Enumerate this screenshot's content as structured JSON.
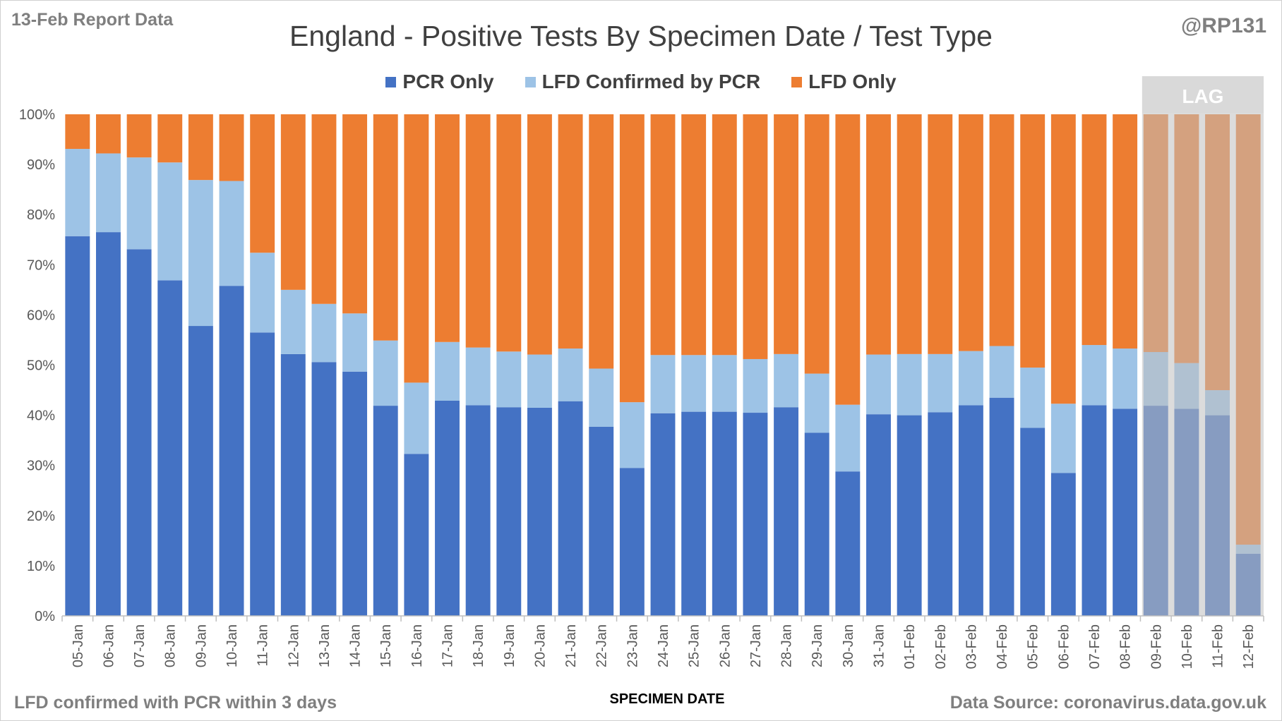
{
  "header": {
    "report_label": "13-Feb Report Data",
    "handle": "@RP131"
  },
  "footer": {
    "note": "LFD confirmed with PCR within 3 days",
    "source": "Data Source: coronavirus.data.gov.uk"
  },
  "lag_label": "LAG",
  "chart_data": {
    "type": "bar",
    "stacked": true,
    "percent_stacked": true,
    "title": "England - Positive Tests By Specimen Date / Test Type",
    "xlabel": "SPECIMEN DATE",
    "ylabel": "",
    "ylim": [
      0,
      100
    ],
    "yticks": [
      "0%",
      "10%",
      "20%",
      "30%",
      "40%",
      "50%",
      "60%",
      "70%",
      "80%",
      "90%",
      "100%"
    ],
    "legend_position": "top-center",
    "grid": false,
    "categories": [
      "05-Jan",
      "06-Jan",
      "07-Jan",
      "08-Jan",
      "09-Jan",
      "10-Jan",
      "11-Jan",
      "12-Jan",
      "13-Jan",
      "14-Jan",
      "15-Jan",
      "16-Jan",
      "17-Jan",
      "18-Jan",
      "19-Jan",
      "20-Jan",
      "21-Jan",
      "22-Jan",
      "23-Jan",
      "24-Jan",
      "25-Jan",
      "26-Jan",
      "27-Jan",
      "28-Jan",
      "29-Jan",
      "30-Jan",
      "31-Jan",
      "01-Feb",
      "02-Feb",
      "03-Feb",
      "04-Feb",
      "05-Feb",
      "06-Feb",
      "07-Feb",
      "08-Feb",
      "09-Feb",
      "10-Feb",
      "11-Feb",
      "12-Feb"
    ],
    "series": [
      {
        "name": "PCR Only",
        "color": "#4472c4",
        "values": [
          75.7,
          76.5,
          73.1,
          66.9,
          57.8,
          65.8,
          56.5,
          52.2,
          50.6,
          48.7,
          41.9,
          32.3,
          42.9,
          42.0,
          41.6,
          41.5,
          42.8,
          37.7,
          29.5,
          40.4,
          40.7,
          40.7,
          40.5,
          41.6,
          36.5,
          28.8,
          40.2,
          40.0,
          40.6,
          42.0,
          43.5,
          37.5,
          28.5,
          42.0,
          41.3,
          41.9,
          41.3,
          40.0,
          12.4
        ]
      },
      {
        "name": "LFD Confirmed by PCR",
        "color": "#9dc3e6",
        "values": [
          17.4,
          15.7,
          18.3,
          23.5,
          29.1,
          20.9,
          15.9,
          12.8,
          11.6,
          11.6,
          13.0,
          14.2,
          11.7,
          11.5,
          11.1,
          10.6,
          10.5,
          11.6,
          13.1,
          11.6,
          11.3,
          11.3,
          10.7,
          10.6,
          11.8,
          13.3,
          11.9,
          12.2,
          11.6,
          10.8,
          10.3,
          12.0,
          13.8,
          12.0,
          12.0,
          10.7,
          9.1,
          5.0,
          1.8
        ]
      },
      {
        "name": "LFD Only",
        "color": "#ed7d31",
        "values": [
          6.9,
          7.8,
          8.6,
          9.6,
          13.1,
          13.3,
          27.6,
          35.0,
          37.8,
          39.7,
          45.1,
          53.5,
          45.4,
          46.5,
          47.3,
          47.9,
          46.7,
          50.7,
          57.4,
          48.0,
          48.0,
          48.0,
          48.8,
          47.8,
          51.7,
          57.9,
          47.9,
          47.8,
          47.8,
          47.2,
          46.2,
          50.5,
          57.7,
          46.0,
          46.7,
          47.4,
          49.6,
          55.0,
          85.8
        ]
      }
    ],
    "lag_categories": [
      "09-Feb",
      "10-Feb",
      "11-Feb",
      "12-Feb"
    ]
  }
}
